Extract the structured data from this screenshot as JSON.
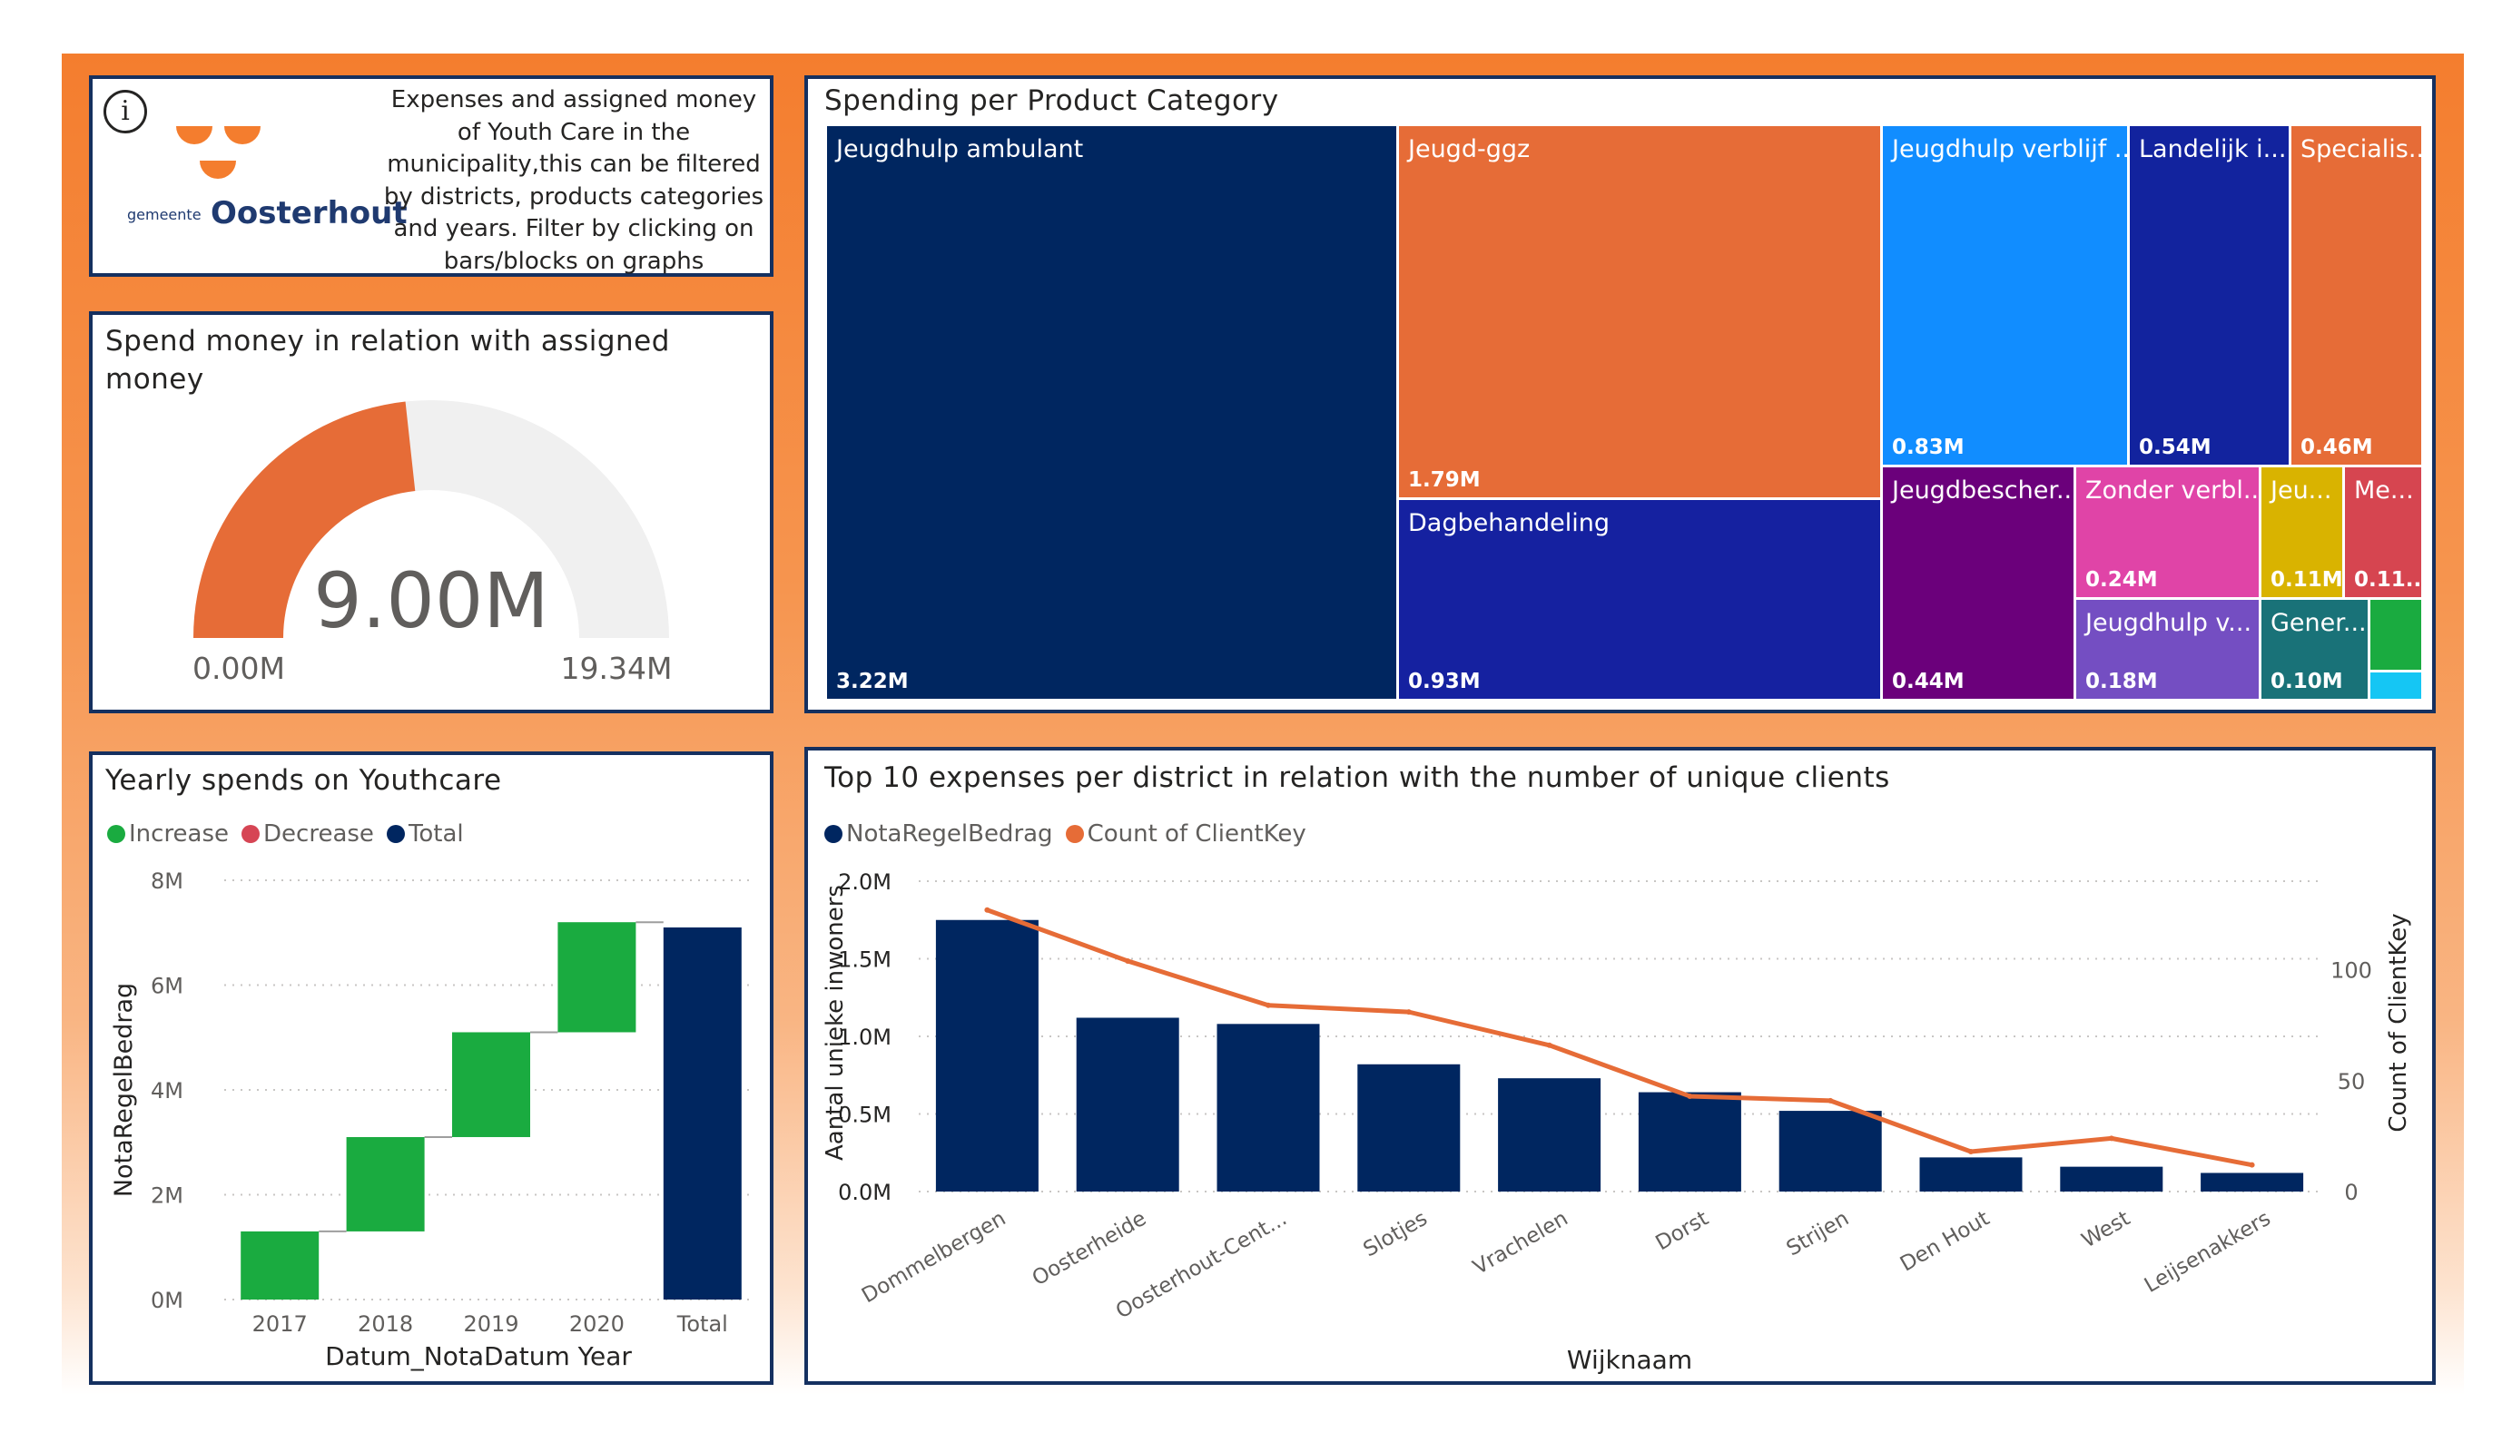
{
  "colors": {
    "navy": "#002660",
    "orange": "#e66c37",
    "increase": "#1aab40",
    "decrease": "#d64554",
    "total": "#002660",
    "gauge_track": "#f0f0f0",
    "frame": "#15305f"
  },
  "info": {
    "icon": "info-icon",
    "logo_prefix": "gemeente",
    "logo_name": "Oosterhout",
    "description": "Expenses and assigned money of Youth Care in the municipality,this can be filtered by districts, products categories and years. Filter by clicking on bars/blocks on graphs"
  },
  "gauge": {
    "title": "Spend money in relation with assigned money",
    "value_label": "9.00M",
    "min_label": "0.00M",
    "max_label": "19.34M",
    "value": 9.0,
    "min": 0,
    "max": 19.34
  },
  "treemap": {
    "title": "Spending per Product Category",
    "cells": [
      {
        "label": "Jeugdhulp ambulant",
        "value_label": "3.22M",
        "color": "#002660"
      },
      {
        "label": "Jeugd-ggz",
        "value_label": "1.79M",
        "color": "#e66c37"
      },
      {
        "label": "Dagbehandeling",
        "value_label": "0.93M",
        "color": "#1521a0"
      },
      {
        "label": "Jeugdhulp verblijf ...",
        "value_label": "0.83M",
        "color": "#118dff"
      },
      {
        "label": "Landelijk i...",
        "value_label": "0.54M",
        "color": "#12239e"
      },
      {
        "label": "Specialis...",
        "value_label": "0.46M",
        "color": "#e66c37"
      },
      {
        "label": "Jeugdbescher...",
        "value_label": "0.44M",
        "color": "#6b007b"
      },
      {
        "label": "Zonder verbl...",
        "value_label": "0.24M",
        "color": "#e044a7"
      },
      {
        "label": "Jeu...",
        "value_label": "0.11M",
        "color": "#d9b300"
      },
      {
        "label": "Me...",
        "value_label": "0.11...",
        "color": "#d64550"
      },
      {
        "label": "Jeugdhulp v...",
        "value_label": "0.18M",
        "color": "#744ec2"
      },
      {
        "label": "Gener...",
        "value_label": "0.10M",
        "color": "#197278"
      },
      {
        "label": "",
        "value_label": "",
        "color": "#1aab40"
      },
      {
        "label": "",
        "value_label": "",
        "color": "#15c6f4"
      }
    ]
  },
  "waterfall": {
    "title": "Yearly spends on Youthcare",
    "legend": [
      "Increase",
      "Decrease",
      "Total"
    ],
    "xlabel": "Datum_NotaDatum Year",
    "ylabel": "NotaRegelBedrag",
    "y_ticks": [
      "0M",
      "2M",
      "4M",
      "6M",
      "8M"
    ]
  },
  "combo": {
    "title": "Top 10 expenses per district in relation with the number of unique clients",
    "legend": [
      "NotaRegelBedrag",
      "Count of ClientKey"
    ],
    "xlabel": "Wijknaam",
    "ylabel_left": "Aantal unieke inwoners",
    "ylabel_right": "Count of ClientKey",
    "y_ticks_left": [
      "0.0M",
      "0.5M",
      "1.0M",
      "1.5M",
      "2.0M"
    ],
    "y_ticks_right": [
      "0",
      "50",
      "100"
    ]
  },
  "chart_data": [
    {
      "type": "gauge",
      "title": "Spend money in relation with assigned money",
      "value": 9.0,
      "min": 0,
      "max": 19.34,
      "unit": "M"
    },
    {
      "type": "treemap",
      "title": "Spending per Product Category",
      "categories": [
        "Jeugdhulp ambulant",
        "Jeugd-ggz",
        "Dagbehandeling",
        "Jeugdhulp verblijf ...",
        "Landelijk i...",
        "Specialis...",
        "Jeugdbescher...",
        "Zonder verbl...",
        "Jeugdhulp v...",
        "Jeu...",
        "Me...",
        "Gener..."
      ],
      "values": [
        3.22,
        1.79,
        0.93,
        0.83,
        0.54,
        0.46,
        0.44,
        0.24,
        0.18,
        0.11,
        0.11,
        0.1
      ],
      "unit": "M"
    },
    {
      "type": "bar",
      "subtype": "waterfall",
      "title": "Yearly spends on Youthcare",
      "categories": [
        "2017",
        "2018",
        "2019",
        "2020",
        "Total"
      ],
      "series": [
        {
          "name": "Increase",
          "values": [
            1.3,
            1.8,
            2.0,
            2.1,
            null
          ]
        },
        {
          "name": "Total",
          "values": [
            null,
            null,
            null,
            null,
            7.1
          ]
        }
      ],
      "xlabel": "Datum_NotaDatum Year",
      "ylabel": "NotaRegelBedrag",
      "ylim": [
        0,
        8
      ],
      "y_unit": "M",
      "legend": [
        "Increase",
        "Decrease",
        "Total"
      ],
      "legend_position": "top-left"
    },
    {
      "type": "bar",
      "subtype": "bar+line",
      "title": "Top 10 expenses per district in relation with the number of unique clients",
      "categories": [
        "Dommelbergen",
        "Oosterheide",
        "Oosterhout-Cent...",
        "Slotjes",
        "Vrachelen",
        "Dorst",
        "Strijen",
        "Den Hout",
        "West",
        "Leijsenakkers"
      ],
      "series": [
        {
          "name": "NotaRegelBedrag",
          "type": "bar",
          "axis": "left",
          "values": [
            1.75,
            1.12,
            1.08,
            0.82,
            0.73,
            0.64,
            0.52,
            0.22,
            0.16,
            0.12
          ]
        },
        {
          "name": "Count of ClientKey",
          "type": "line",
          "axis": "right",
          "values": [
            127,
            104,
            84,
            81,
            66,
            43,
            41,
            18,
            24,
            12
          ]
        }
      ],
      "xlabel": "Wijknaam",
      "ylabel": "Aantal unieke inwoners",
      "ylabel_right": "Count of ClientKey",
      "ylim": [
        0,
        2.0
      ],
      "ylim_right": [
        0,
        140
      ],
      "y_unit": "M",
      "legend_position": "top-left"
    }
  ]
}
